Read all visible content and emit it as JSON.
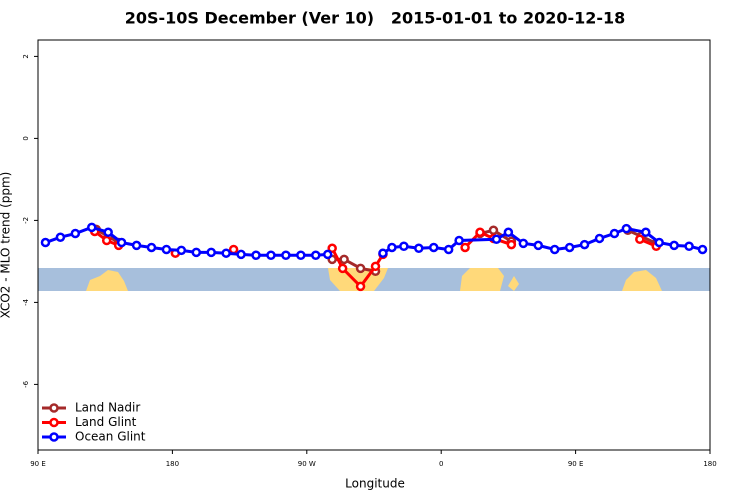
{
  "chart_data": {
    "type": "line",
    "title": "20S-10S December (Ver 10)   2015-01-01 to 2020-12-18",
    "xlabel": "Longitude",
    "ylabel": "XCO2 - MLO trend (ppm)",
    "xlim": [
      90,
      540
    ],
    "ylim": [
      -7.6,
      2.4
    ],
    "xticks": [
      {
        "value": 90,
        "label": "90 E"
      },
      {
        "value": 180,
        "label": "180"
      },
      {
        "value": 270,
        "label": "90 W"
      },
      {
        "value": 360,
        "label": "0"
      },
      {
        "value": 450,
        "label": "90 E"
      },
      {
        "value": 540,
        "label": "180"
      }
    ],
    "yticks": [
      -6,
      -4,
      -2,
      0,
      2
    ],
    "legend": "bottomleft",
    "series": [
      {
        "name": "Land Nadir",
        "color": "#a52a2a",
        "x": [
          129,
          137,
          144,
          null,
          287,
          295,
          306,
          316,
          null,
          386,
          395,
          407,
          null,
          485,
          494,
          504
        ],
        "values": [
          -2.22,
          -2.39,
          -2.54,
          null,
          -2.95,
          -2.95,
          -3.17,
          -3.24,
          null,
          -2.32,
          -2.24,
          -2.51,
          null,
          -2.24,
          -2.39,
          -2.56
        ]
      },
      {
        "name": "Land Glint",
        "color": "#ff0000",
        "x": [
          128,
          136,
          144,
          null,
          182,
          null,
          221,
          null,
          287,
          294,
          306,
          316,
          321,
          null,
          376,
          386,
          395,
          407,
          null,
          493,
          504
        ],
        "values": [
          -2.27,
          -2.49,
          -2.61,
          null,
          -2.8,
          null,
          -2.71,
          null,
          -2.68,
          -3.17,
          -3.61,
          -3.12,
          -2.83,
          null,
          -2.66,
          -2.29,
          -2.44,
          -2.59,
          null,
          -2.46,
          -2.63
        ]
      },
      {
        "name": "Ocean Glint",
        "color": "#0000ff",
        "x": [
          95,
          105,
          115,
          126,
          137,
          146,
          156,
          166,
          176,
          186,
          196,
          206,
          216,
          226,
          236,
          246,
          256,
          266,
          276,
          284,
          null,
          321,
          327,
          335,
          345,
          355,
          365,
          372,
          397,
          405,
          415,
          425,
          436,
          446,
          456,
          466,
          476,
          484,
          497,
          506,
          516,
          526,
          535
        ],
        "values": [
          -2.54,
          -2.41,
          -2.32,
          -2.17,
          -2.29,
          -2.54,
          -2.61,
          -2.66,
          -2.71,
          -2.73,
          -2.78,
          -2.78,
          -2.8,
          -2.83,
          -2.85,
          -2.85,
          -2.85,
          -2.85,
          -2.85,
          -2.83,
          null,
          -2.8,
          -2.66,
          -2.63,
          -2.68,
          -2.66,
          -2.71,
          -2.49,
          -2.46,
          -2.29,
          -2.56,
          -2.61,
          -2.71,
          -2.66,
          -2.59,
          -2.44,
          -2.32,
          -2.2,
          -2.29,
          -2.54,
          -2.61,
          -2.63,
          -2.71
        ]
      }
    ]
  }
}
